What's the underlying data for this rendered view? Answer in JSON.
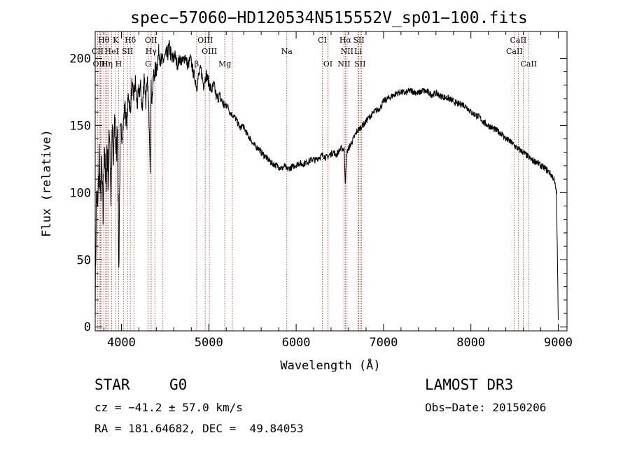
{
  "chart_data": {
    "type": "line",
    "title": "spec−57060−HD120534N515552V_sp01−100.fits",
    "xlabel": "Wavelength (Å)",
    "ylabel": "Flux (relative)",
    "xlim": [
      3700,
      9100
    ],
    "ylim": [
      -3,
      220
    ],
    "xticks": [
      4000,
      5000,
      6000,
      7000,
      8000,
      9000
    ],
    "yticks": [
      0,
      50,
      100,
      150,
      200
    ],
    "series": [
      {
        "name": "flux",
        "x": [
          3700,
          3715,
          3730,
          3745,
          3760,
          3775,
          3790,
          3805,
          3820,
          3835,
          3850,
          3865,
          3880,
          3895,
          3910,
          3925,
          3940,
          3955,
          3970,
          3985,
          4000,
          4020,
          4040,
          4060,
          4080,
          4100,
          4120,
          4140,
          4160,
          4180,
          4200,
          4220,
          4240,
          4260,
          4280,
          4300,
          4310,
          4320,
          4330,
          4340,
          4350,
          4370,
          4400,
          4430,
          4460,
          4490,
          4520,
          4550,
          4580,
          4610,
          4640,
          4670,
          4700,
          4730,
          4760,
          4790,
          4820,
          4850,
          4861,
          4880,
          4910,
          4940,
          4970,
          5000,
          5030,
          5060,
          5090,
          5120,
          5150,
          5183,
          5210,
          5240,
          5270,
          5300,
          5330,
          5360,
          5390,
          5420,
          5450,
          5480,
          5510,
          5540,
          5570,
          5600,
          5630,
          5660,
          5690,
          5720,
          5750,
          5780,
          5810,
          5840,
          5870,
          5893,
          5920,
          5950,
          5980,
          6010,
          6040,
          6070,
          6100,
          6130,
          6160,
          6190,
          6220,
          6250,
          6280,
          6310,
          6340,
          6370,
          6400,
          6430,
          6460,
          6490,
          6520,
          6550,
          6563,
          6580,
          6610,
          6640,
          6670,
          6700,
          6730,
          6760,
          6790,
          6820,
          6850,
          6880,
          6910,
          6940,
          6970,
          7000,
          7050,
          7100,
          7150,
          7200,
          7250,
          7300,
          7350,
          7400,
          7450,
          7500,
          7550,
          7600,
          7650,
          7700,
          7750,
          7800,
          7850,
          7900,
          7950,
          8000,
          8050,
          8100,
          8150,
          8200,
          8250,
          8300,
          8350,
          8400,
          8450,
          8500,
          8550,
          8600,
          8650,
          8700,
          8750,
          8800,
          8850,
          8900,
          8950,
          8980,
          9000
        ],
        "values": [
          20,
          100,
          85,
          130,
          95,
          120,
          80,
          140,
          100,
          135,
          110,
          150,
          95,
          145,
          120,
          160,
          125,
          150,
          40,
          138,
          140,
          150,
          165,
          150,
          175,
          160,
          180,
          170,
          182,
          165,
          175,
          178,
          160,
          188,
          168,
          182,
          165,
          150,
          120,
          178,
          170,
          188,
          192,
          205,
          196,
          200,
          202,
          208,
          198,
          203,
          195,
          200,
          197,
          202,
          194,
          200,
          190,
          183,
          178,
          186,
          192,
          180,
          188,
          182,
          176,
          180,
          170,
          172,
          168,
          164,
          166,
          160,
          158,
          156,
          152,
          148,
          150,
          146,
          142,
          140,
          136,
          134,
          133,
          130,
          128,
          126,
          124,
          122,
          121,
          120,
          119,
          118,
          120,
          117,
          118,
          119,
          120,
          121,
          122,
          121,
          122,
          123,
          124,
          125,
          124,
          126,
          127,
          128,
          126,
          127,
          129,
          130,
          128,
          131,
          133,
          132,
          108,
          130,
          134,
          138,
          142,
          146,
          148,
          150,
          152,
          155,
          157,
          159,
          161,
          162,
          164,
          168,
          170,
          172,
          174,
          175,
          174,
          176,
          175,
          174,
          176,
          175,
          173,
          174,
          172,
          171,
          170,
          168,
          166,
          166,
          164,
          160,
          158,
          156,
          152,
          150,
          148,
          146,
          144,
          140,
          138,
          135,
          132,
          130,
          127,
          124,
          123,
          120,
          118,
          115,
          110,
          100,
          5
        ]
      }
    ],
    "spectral_lines": [
      {
        "label": "Hθ",
        "wl": 3798,
        "row": 1
      },
      {
        "label": "K",
        "wl": 3934,
        "row": 1
      },
      {
        "label": "Hδ",
        "wl": 4102,
        "row": 1
      },
      {
        "label": "OII",
        "wl": 4340,
        "row": 1
      },
      {
        "label": "OIII",
        "wl": 4959,
        "row": 1
      },
      {
        "label": "CI",
        "wl": 6300,
        "row": 1
      },
      {
        "label": "Hα",
        "wl": 6563,
        "row": 1
      },
      {
        "label": "SII",
        "wl": 6717,
        "row": 1
      },
      {
        "label": "CaII",
        "wl": 8542,
        "row": 1
      },
      {
        "label": "CII",
        "wl": 3727,
        "row": 2
      },
      {
        "label": "HeI",
        "wl": 3889,
        "row": 2
      },
      {
        "label": "SII",
        "wl": 4070,
        "row": 2
      },
      {
        "label": "Hγ",
        "wl": 4340,
        "row": 2
      },
      {
        "label": "OIII",
        "wl": 5007,
        "row": 2
      },
      {
        "label": "Na",
        "wl": 5893,
        "row": 2
      },
      {
        "label": "NII",
        "wl": 6583,
        "row": 2
      },
      {
        "label": "Li",
        "wl": 6708,
        "row": 2
      },
      {
        "label": "CaII",
        "wl": 8498,
        "row": 2
      },
      {
        "label": "OIII",
        "wl": 3760,
        "row": 3
      },
      {
        "label": "Hη",
        "wl": 3835,
        "row": 3
      },
      {
        "label": "H",
        "wl": 3968,
        "row": 3
      },
      {
        "label": "G",
        "wl": 4305,
        "row": 3
      },
      {
        "label": "β",
        "wl": 4861,
        "row": 3
      },
      {
        "label": "Mg",
        "wl": 5183,
        "row": 3
      },
      {
        "label": "OI",
        "wl": 6363,
        "row": 3
      },
      {
        "label": "NII",
        "wl": 6548,
        "row": 3
      },
      {
        "label": "SII",
        "wl": 6731,
        "row": 3
      },
      {
        "label": "CaII",
        "wl": 8662,
        "row": 3
      }
    ],
    "line_extra_wl": [
      3750,
      3771,
      3820,
      3850,
      4026,
      4144,
      4383,
      4471,
      5270,
      6364,
      6750,
      8600
    ]
  },
  "info": {
    "object_class": "STAR",
    "subclass": "G0",
    "survey": "LAMOST DR3",
    "cz": "cz = −41.2 ± 57.0 km/s",
    "obs_date": "Obs−Date: 20150206",
    "coords": "RA = 181.64682, DEC =  49.84053"
  },
  "colors": {
    "spectral_line": "#c8281e",
    "trace": "#000000"
  }
}
